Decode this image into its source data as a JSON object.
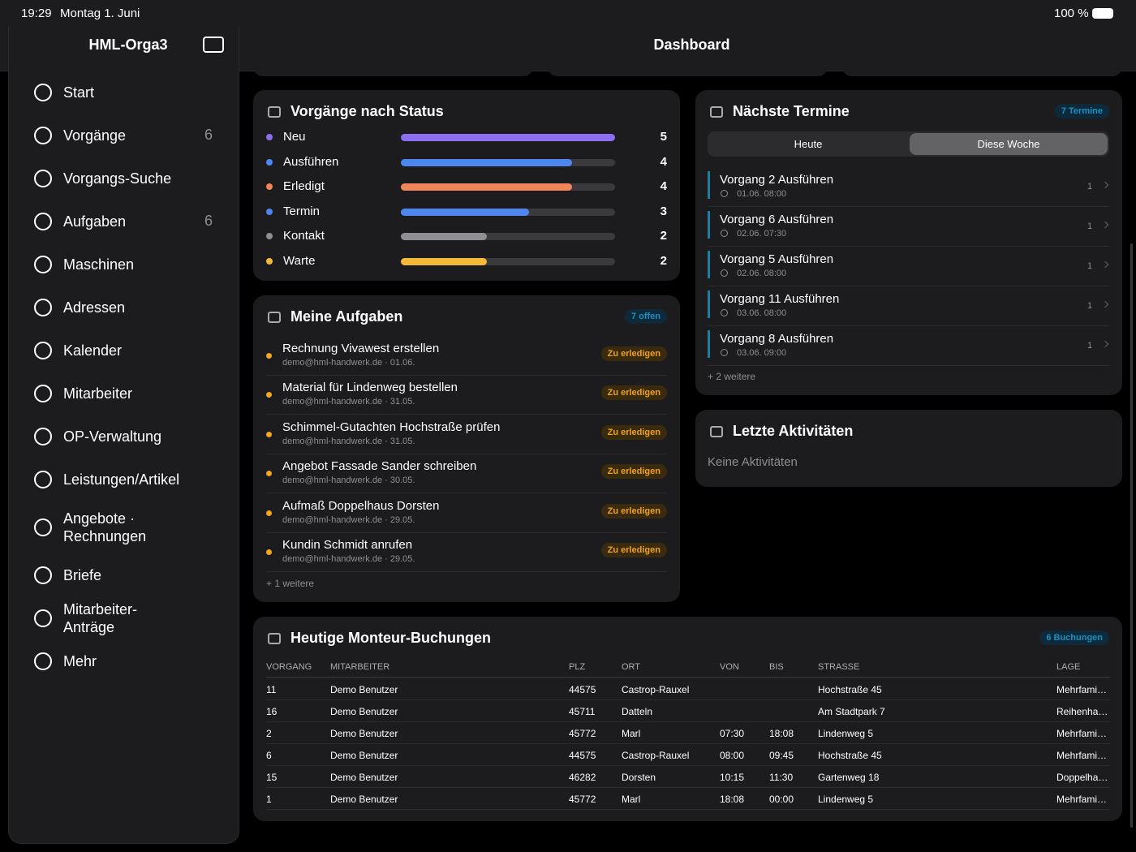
{
  "status_bar": {
    "time": "19:29",
    "date": "Montag 1. Juni",
    "battery": "100 %"
  },
  "sidebar": {
    "title": "HML-Orga3",
    "items": [
      {
        "label": "Start"
      },
      {
        "label": "Vorgänge",
        "badge": 6
      },
      {
        "label": "Vorgangs-Suche"
      },
      {
        "label": "Aufgaben",
        "badge": 6
      },
      {
        "label": "Maschinen"
      },
      {
        "label": "Adressen"
      },
      {
        "label": "Kalender"
      },
      {
        "label": "Mitarbeiter"
      },
      {
        "label": "OP-Verwaltung"
      },
      {
        "label": "Leistungen/Artikel"
      },
      {
        "label": "Angebote · Rechnungen"
      },
      {
        "label": "Briefe"
      },
      {
        "label": "Mitarbeiter-Anträge"
      },
      {
        "label": "Mehr"
      }
    ]
  },
  "header": {
    "title": "Dashboard"
  },
  "status_widget": {
    "title": "Vorgänge nach Status",
    "rows": [
      {
        "label": "Neu",
        "color": "#8b6ff0",
        "count": 5
      },
      {
        "label": "Ausführen",
        "color": "#4e86f0",
        "count": 4
      },
      {
        "label": "Erledigt",
        "color": "#f0845a",
        "count": 4
      },
      {
        "label": "Termin",
        "color": "#4e86f0",
        "count": 3
      },
      {
        "label": "Kontakt",
        "color": "#8e8e93",
        "count": 2
      },
      {
        "label": "Warte",
        "color": "#f5b93a",
        "count": 2
      }
    ]
  },
  "tasks": {
    "title": "Meine Aufgaben",
    "badge": "7 offen",
    "items": [
      {
        "title": "Rechnung Vivawest erstellen",
        "meta": "demo@hml-handwerk.de · 01.06.",
        "status": "Zu erledigen"
      },
      {
        "title": "Material für Lindenweg bestellen",
        "meta": "demo@hml-handwerk.de · 31.05.",
        "status": "Zu erledigen"
      },
      {
        "title": "Schimmel-Gutachten Hochstraße prüfen",
        "meta": "demo@hml-handwerk.de · 31.05.",
        "status": "Zu erledigen"
      },
      {
        "title": "Angebot Fassade Sander schreiben",
        "meta": "demo@hml-handwerk.de · 30.05.",
        "status": "Zu erledigen"
      },
      {
        "title": "Aufmaß Doppelhaus Dorsten",
        "meta": "demo@hml-handwerk.de · 29.05.",
        "status": "Zu erledigen"
      },
      {
        "title": "Kundin Schmidt anrufen",
        "meta": "demo@hml-handwerk.de · 29.05.",
        "status": "Zu erledigen"
      }
    ],
    "more": "+ 1 weitere"
  },
  "appointments": {
    "title": "Nächste Termine",
    "badge": "7 Termine",
    "tabs": [
      "Heute",
      "Diese Woche"
    ],
    "items": [
      {
        "title": "Vorgang 2 Ausführen",
        "time": "01.06. 08:00",
        "count": 1
      },
      {
        "title": "Vorgang 6 Ausführen",
        "time": "02.06. 07:30",
        "count": 1
      },
      {
        "title": "Vorgang 5 Ausführen",
        "time": "02.06. 08:00",
        "count": 1
      },
      {
        "title": "Vorgang 11 Ausführen",
        "time": "03.06. 08:00",
        "count": 1
      },
      {
        "title": "Vorgang 8 Ausführen",
        "time": "03.06. 09:00",
        "count": 1
      }
    ],
    "more": "+ 2 weitere"
  },
  "activities": {
    "title": "Letzte Aktivitäten",
    "empty": "Keine Aktivitäten"
  },
  "bookings": {
    "title": "Heutige Monteur-Buchungen",
    "badge": "6 Buchungen",
    "columns": [
      "VORGANG",
      "MITARBEITER",
      "PLZ",
      "ORT",
      "VON",
      "BIS",
      "STRASSE",
      "LAGE"
    ],
    "rows": [
      [
        "11",
        "Demo Benutzer",
        "44575",
        "Castrop-Rauxel",
        "",
        "",
        "Hochstraße 45",
        "Mehrfami…"
      ],
      [
        "16",
        "Demo Benutzer",
        "45711",
        "Datteln",
        "",
        "",
        "Am Stadtpark 7",
        "Reihenha…"
      ],
      [
        "2",
        "Demo Benutzer",
        "45772",
        "Marl",
        "07:30",
        "18:08",
        "Lindenweg 5",
        "Mehrfami…"
      ],
      [
        "6",
        "Demo Benutzer",
        "44575",
        "Castrop-Rauxel",
        "08:00",
        "09:45",
        "Hochstraße 45",
        "Mehrfami…"
      ],
      [
        "15",
        "Demo Benutzer",
        "46282",
        "Dorsten",
        "10:15",
        "11:30",
        "Gartenweg 18",
        "Doppelha…"
      ],
      [
        "1",
        "Demo Benutzer",
        "45772",
        "Marl",
        "18:08",
        "00:00",
        "Lindenweg 5",
        "Mehrfami…"
      ]
    ]
  }
}
